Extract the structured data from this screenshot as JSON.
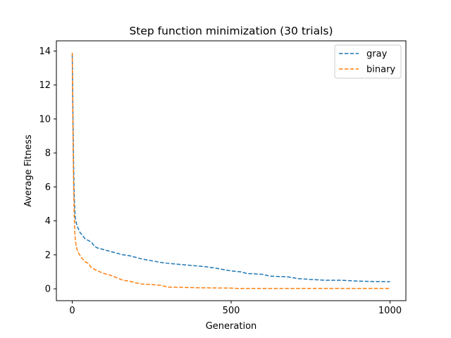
{
  "chart_data": {
    "type": "line",
    "title": "Step function minimization (30 trials)",
    "xlabel": "Generation",
    "ylabel": "Average Fitness",
    "xlim": [
      -50,
      1050
    ],
    "ylim": [
      -0.7,
      14.6
    ],
    "xticks": [
      0,
      500,
      1000
    ],
    "yticks": [
      0,
      2,
      4,
      6,
      8,
      10,
      12,
      14
    ],
    "grid": false,
    "legend_position": "top-right",
    "series": [
      {
        "name": "gray",
        "color": "#1f77b4",
        "line_style": "dashed",
        "points": [
          [
            0,
            13.8
          ],
          [
            2,
            10.5
          ],
          [
            4,
            7.5
          ],
          [
            6,
            5.6
          ],
          [
            8,
            4.6
          ],
          [
            10,
            4.1
          ],
          [
            15,
            3.7
          ],
          [
            20,
            3.5
          ],
          [
            25,
            3.3
          ],
          [
            30,
            3.2
          ],
          [
            40,
            2.95
          ],
          [
            50,
            2.85
          ],
          [
            60,
            2.75
          ],
          [
            70,
            2.5
          ],
          [
            80,
            2.4
          ],
          [
            100,
            2.3
          ],
          [
            120,
            2.2
          ],
          [
            140,
            2.1
          ],
          [
            160,
            2.0
          ],
          [
            180,
            1.95
          ],
          [
            200,
            1.85
          ],
          [
            220,
            1.75
          ],
          [
            250,
            1.65
          ],
          [
            280,
            1.55
          ],
          [
            300,
            1.5
          ],
          [
            330,
            1.45
          ],
          [
            360,
            1.4
          ],
          [
            390,
            1.35
          ],
          [
            420,
            1.3
          ],
          [
            450,
            1.22
          ],
          [
            470,
            1.15
          ],
          [
            500,
            1.05
          ],
          [
            530,
            1.0
          ],
          [
            550,
            0.9
          ],
          [
            600,
            0.85
          ],
          [
            620,
            0.75
          ],
          [
            680,
            0.7
          ],
          [
            710,
            0.6
          ],
          [
            750,
            0.55
          ],
          [
            800,
            0.5
          ],
          [
            850,
            0.5
          ],
          [
            900,
            0.45
          ],
          [
            950,
            0.43
          ],
          [
            1000,
            0.42
          ]
        ]
      },
      {
        "name": "binary",
        "color": "#ff7f0e",
        "line_style": "dashed",
        "points": [
          [
            0,
            13.9
          ],
          [
            2,
            9.8
          ],
          [
            4,
            6.5
          ],
          [
            6,
            4.5
          ],
          [
            8,
            3.3
          ],
          [
            10,
            2.8
          ],
          [
            15,
            2.3
          ],
          [
            20,
            2.1
          ],
          [
            30,
            1.8
          ],
          [
            40,
            1.6
          ],
          [
            50,
            1.5
          ],
          [
            60,
            1.25
          ],
          [
            80,
            1.05
          ],
          [
            100,
            0.9
          ],
          [
            120,
            0.8
          ],
          [
            140,
            0.65
          ],
          [
            160,
            0.5
          ],
          [
            180,
            0.45
          ],
          [
            200,
            0.35
          ],
          [
            220,
            0.28
          ],
          [
            250,
            0.25
          ],
          [
            280,
            0.2
          ],
          [
            300,
            0.1
          ],
          [
            350,
            0.08
          ],
          [
            400,
            0.06
          ],
          [
            450,
            0.05
          ],
          [
            500,
            0.04
          ],
          [
            520,
            0.02
          ],
          [
            600,
            0.02
          ],
          [
            700,
            0.02
          ],
          [
            800,
            0.02
          ],
          [
            900,
            0.02
          ],
          [
            1000,
            0.02
          ]
        ]
      }
    ]
  }
}
